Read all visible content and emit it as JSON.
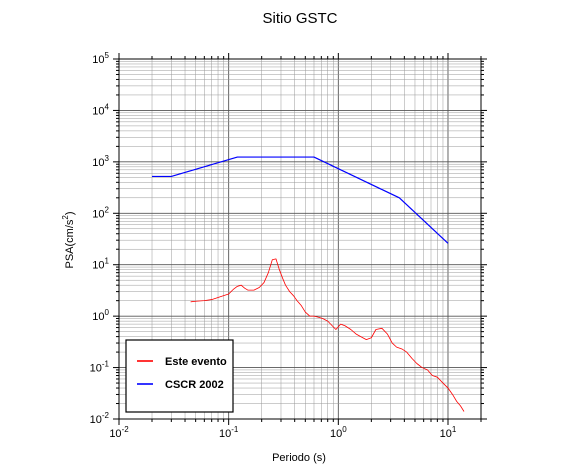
{
  "chart_data": {
    "type": "line",
    "title": "Sitio GSTC",
    "xlabel": "Periodo (s)",
    "ylabel": {
      "base": "PSA(cm/s",
      "exp": "2",
      "close": ")"
    },
    "x_scale": "log",
    "y_scale": "log",
    "xlim": [
      0.01,
      20
    ],
    "ylim": [
      0.01,
      100000
    ],
    "x_ticks": [
      {
        "base": "10",
        "exp": "-2",
        "value": 0.01
      },
      {
        "base": "10",
        "exp": "-1",
        "value": 0.1
      },
      {
        "base": "10",
        "exp": "0",
        "value": 1
      },
      {
        "base": "10",
        "exp": "1",
        "value": 10
      }
    ],
    "y_ticks": [
      {
        "base": "10",
        "exp": "-2",
        "value": 0.01
      },
      {
        "base": "10",
        "exp": "-1",
        "value": 0.1
      },
      {
        "base": "10",
        "exp": "0",
        "value": 1
      },
      {
        "base": "10",
        "exp": "1",
        "value": 10
      },
      {
        "base": "10",
        "exp": "2",
        "value": 100
      },
      {
        "base": "10",
        "exp": "3",
        "value": 1000
      },
      {
        "base": "10",
        "exp": "4",
        "value": 10000
      },
      {
        "base": "10",
        "exp": "5",
        "value": 100000
      }
    ],
    "grid": true,
    "legend_position": "bottom-left",
    "series": [
      {
        "name": "Este evento",
        "color": "#ff0000",
        "x": [
          0.045,
          0.05,
          0.06,
          0.07,
          0.08,
          0.09,
          0.1,
          0.11,
          0.12,
          0.13,
          0.14,
          0.15,
          0.17,
          0.19,
          0.21,
          0.23,
          0.25,
          0.27,
          0.29,
          0.31,
          0.33,
          0.36,
          0.39,
          0.42,
          0.46,
          0.5,
          0.55,
          0.6,
          0.66,
          0.72,
          0.8,
          0.88,
          0.95,
          1.05,
          1.15,
          1.3,
          1.45,
          1.6,
          1.8,
          2.0,
          2.2,
          2.5,
          2.8,
          3.1,
          3.4,
          3.8,
          4.2,
          4.7,
          5.2,
          5.8,
          6.5,
          7.2,
          8.0,
          9.0,
          10.0,
          11.0,
          12.0,
          13.0,
          14.0
        ],
        "y": [
          1.9,
          1.95,
          2.0,
          2.1,
          2.3,
          2.5,
          2.7,
          3.3,
          3.8,
          4.0,
          3.5,
          3.2,
          3.2,
          3.6,
          4.5,
          7.0,
          12.5,
          13.0,
          8.0,
          5.5,
          4.0,
          3.0,
          2.5,
          2.0,
          1.6,
          1.2,
          1.0,
          1.0,
          0.95,
          0.9,
          0.8,
          0.65,
          0.55,
          0.7,
          0.65,
          0.55,
          0.45,
          0.4,
          0.35,
          0.38,
          0.55,
          0.58,
          0.45,
          0.3,
          0.25,
          0.23,
          0.2,
          0.15,
          0.12,
          0.1,
          0.09,
          0.07,
          0.065,
          0.05,
          0.04,
          0.03,
          0.022,
          0.018,
          0.014
        ]
      },
      {
        "name": "CSCR 2002",
        "color": "#0000ff",
        "x": [
          0.02,
          0.03,
          0.12,
          0.6,
          3.6,
          10.0
        ],
        "y": [
          520,
          520,
          1240,
          1240,
          200,
          26
        ]
      }
    ]
  }
}
